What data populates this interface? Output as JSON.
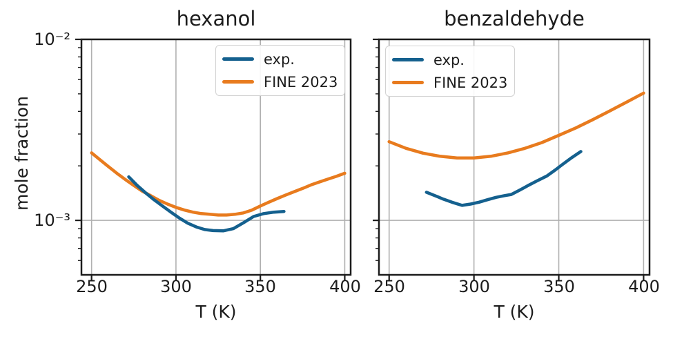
{
  "figure": {
    "xlabel": "T (K)",
    "ylabel": "mole fraction",
    "background": "#ffffff"
  },
  "palette": {
    "exp_blue": "#14608e",
    "fine_orange": "#e87b1e",
    "grid": "#b0b0b0",
    "axis": "#1c1c1c",
    "legend_border": "#d2d2d2"
  },
  "legend": {
    "items": [
      {
        "label": "exp.",
        "color": "#14608e"
      },
      {
        "label": "FINE 2023",
        "color": "#e87b1e"
      }
    ]
  },
  "chart_data": [
    {
      "type": "line",
      "title": "hexanol",
      "xlabel": "T (K)",
      "ylabel": "mole fraction",
      "yscale": "log",
      "grid": true,
      "legend_position": "upper right",
      "xlim": [
        244,
        403.5
      ],
      "ylim": [
        0.0005,
        0.01
      ],
      "xticks": [
        250,
        300,
        350,
        400
      ],
      "yticks": [
        0.01,
        0.001
      ],
      "ytick_labels": [
        "10⁻²",
        "10⁻³"
      ],
      "series": [
        {
          "name": "exp.",
          "color": "#14608e",
          "x": [
            272,
            277,
            282,
            287,
            292,
            297,
            302,
            307,
            312,
            317,
            322,
            328,
            334,
            340,
            346,
            352,
            358,
            364
          ],
          "y": [
            0.00174,
            0.00156,
            0.00142,
            0.0013,
            0.0012,
            0.00111,
            0.00103,
            0.000965,
            0.00092,
            0.00089,
            0.000878,
            0.000875,
            0.0009,
            0.00097,
            0.00105,
            0.00109,
            0.00111,
            0.00112
          ]
        },
        {
          "name": "FINE 2023",
          "color": "#e87b1e",
          "x": [
            250,
            255,
            260,
            265,
            270,
            275,
            280,
            285,
            290,
            295,
            300,
            305,
            310,
            315,
            320,
            325,
            330,
            335,
            340,
            345,
            350,
            355,
            360,
            365,
            370,
            375,
            380,
            385,
            390,
            395,
            400
          ],
          "y": [
            0.00236,
            0.00216,
            0.00198,
            0.00182,
            0.00168,
            0.00156,
            0.00145,
            0.00137,
            0.00129,
            0.00123,
            0.00118,
            0.00114,
            0.00111,
            0.00109,
            0.00108,
            0.00107,
            0.00107,
            0.00108,
            0.0011,
            0.00114,
            0.0012,
            0.00126,
            0.00132,
            0.00138,
            0.00144,
            0.0015,
            0.00157,
            0.00163,
            0.00169,
            0.00175,
            0.00182
          ]
        }
      ]
    },
    {
      "type": "line",
      "title": "benzaldehyde",
      "xlabel": "T (K)",
      "ylabel": "",
      "yscale": "log",
      "grid": true,
      "legend_position": "upper left",
      "xlim": [
        244,
        403.5
      ],
      "ylim": [
        0.0005,
        0.01
      ],
      "xticks": [
        250,
        300,
        350,
        400
      ],
      "yticks": [
        0.01,
        0.001
      ],
      "ytick_labels": [],
      "series": [
        {
          "name": "exp.",
          "color": "#14608e",
          "x": [
            272,
            277,
            282,
            287,
            293,
            298,
            303,
            308,
            313,
            318,
            322,
            327,
            332,
            337,
            343,
            348,
            352,
            357,
            363
          ],
          "y": [
            0.00143,
            0.00137,
            0.00131,
            0.00126,
            0.00121,
            0.00123,
            0.00126,
            0.0013,
            0.00134,
            0.00137,
            0.00139,
            0.00147,
            0.00156,
            0.00165,
            0.00176,
            0.0019,
            0.00203,
            0.0022,
            0.0024
          ]
        },
        {
          "name": "FINE 2023",
          "color": "#e87b1e",
          "x": [
            250,
            260,
            270,
            280,
            290,
            300,
            310,
            320,
            330,
            340,
            350,
            360,
            370,
            380,
            390,
            400
          ],
          "y": [
            0.00272,
            0.0025,
            0.00235,
            0.00226,
            0.00221,
            0.00221,
            0.00226,
            0.00236,
            0.0025,
            0.00269,
            0.00295,
            0.00324,
            0.0036,
            0.00402,
            0.0045,
            0.00505
          ]
        }
      ]
    }
  ]
}
